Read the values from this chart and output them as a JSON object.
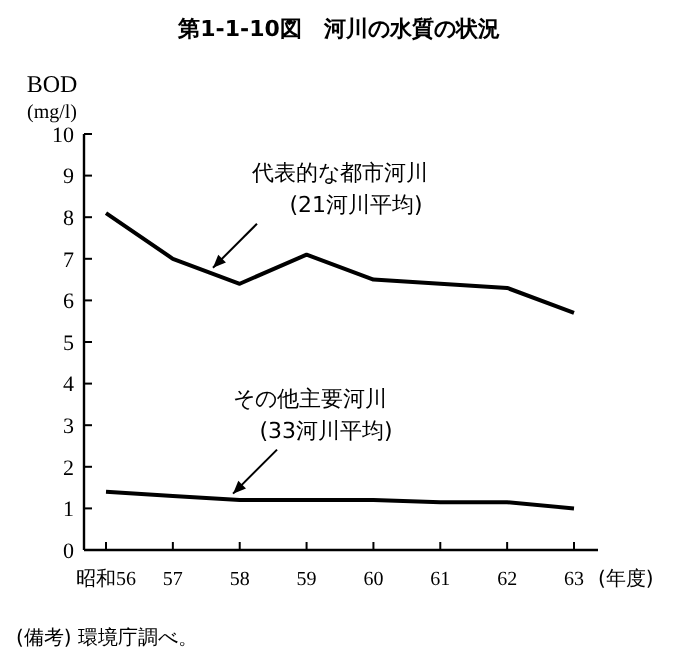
{
  "chart_data": {
    "type": "line",
    "title": "第1-1-10図　河川の水質の状況",
    "ylabel": "BOD\n(mg/l)",
    "xlabel": "(年度)",
    "categories": [
      "昭和56",
      "57",
      "58",
      "59",
      "60",
      "61",
      "62",
      "63"
    ],
    "series": [
      {
        "name": "代表的な都市河川\n(21河川平均)",
        "color": "#000000",
        "values": [
          8.1,
          7.0,
          6.4,
          7.1,
          6.5,
          6.4,
          6.3,
          5.7
        ]
      },
      {
        "name": "その他主要河川\n(33河川平均)",
        "color": "#000000",
        "values": [
          1.4,
          1.3,
          1.2,
          1.2,
          1.2,
          1.15,
          1.15,
          1.0
        ]
      }
    ],
    "ylim": [
      0,
      10
    ],
    "yticks": [
      0,
      1,
      2,
      3,
      4,
      5,
      6,
      7,
      8,
      9,
      10
    ],
    "grid": false,
    "marker": "none",
    "line_style": "solid",
    "annotations": [
      "(備考) 環境庁調べ。"
    ]
  }
}
